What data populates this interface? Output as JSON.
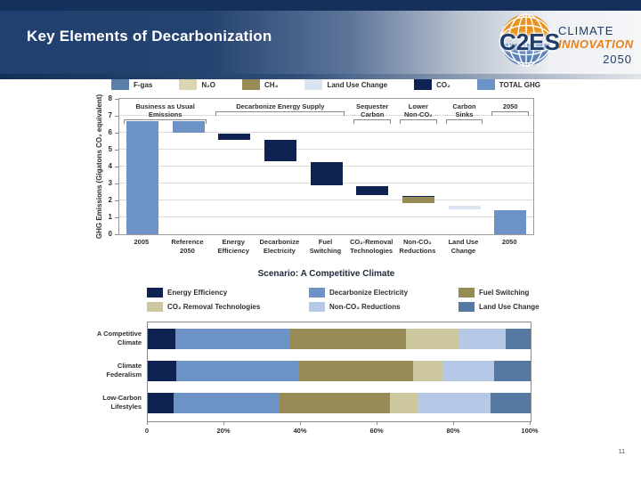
{
  "slide": {
    "title": "Key Elements of Decarbonization",
    "page_number": "11"
  },
  "logo": {
    "wordmark": "C2ES",
    "line1": "CLIMATE",
    "line2": "INNOVATION",
    "line3": "2050",
    "orange": "#e8931f",
    "blue": "#5b82b8",
    "navy": "#1d3c69"
  },
  "chart_data": [
    {
      "type": "bar",
      "subtype": "waterfall",
      "title": "",
      "ylabel": "GHG Emissions (Gigatons CO₂ equivalent)",
      "ylim": [
        0,
        8
      ],
      "yticks": [
        0,
        1,
        2,
        3,
        4,
        5,
        6,
        7,
        8
      ],
      "grid": true,
      "legend_position": "top",
      "palette": {
        "f_gas": "#5b7fa8",
        "n2o": "#dcd5b2",
        "ch4": "#978c55",
        "land_use": "#d9e3f1",
        "co2": "#0e2351",
        "total_ghg": "#6d92c6"
      },
      "legend": [
        {
          "label": "F-gas",
          "color_key": "f_gas"
        },
        {
          "label": "N₂O",
          "color_key": "n2o"
        },
        {
          "label": "CH₄",
          "color_key": "ch4"
        },
        {
          "label": "Land Use Change",
          "color_key": "land_use"
        },
        {
          "label": "CO₂",
          "color_key": "co2"
        },
        {
          "label": "TOTAL GHG",
          "color_key": "total_ghg"
        }
      ],
      "sections": [
        {
          "label": "Business as Usual Emissions",
          "span": [
            0,
            1
          ]
        },
        {
          "label": "Decarbonize Energy Supply",
          "span": [
            2,
            4
          ]
        },
        {
          "label": "Sequester\nCarbon",
          "span": [
            5,
            5
          ]
        },
        {
          "label": "Lower\nNon-CO₂",
          "span": [
            6,
            6
          ]
        },
        {
          "label": "Carbon Sinks",
          "span": [
            7,
            7
          ]
        },
        {
          "label": "2050",
          "span": [
            8,
            8
          ]
        }
      ],
      "categories": [
        "2005",
        "Reference\n2050",
        "Energy\nEfficiency",
        "Decarbonize\nElectricity",
        "Fuel\nSwitching",
        "CO₂-Removal\nTechnologies",
        "Non-CO₂\nReductions",
        "Land Use\nChange",
        "2050"
      ],
      "bars": [
        {
          "category": "2005",
          "segments": [
            {
              "from": 0,
              "to": 6.7,
              "color_key": "total_ghg"
            }
          ]
        },
        {
          "category": "Reference 2050",
          "segments": [
            {
              "from": 6.0,
              "to": 6.7,
              "color_key": "total_ghg"
            }
          ]
        },
        {
          "category": "Energy Efficiency",
          "segments": [
            {
              "from": 5.6,
              "to": 5.95,
              "color_key": "co2"
            }
          ]
        },
        {
          "category": "Decarbonize Electricity",
          "segments": [
            {
              "from": 4.3,
              "to": 5.6,
              "color_key": "co2"
            }
          ]
        },
        {
          "category": "Fuel Switching",
          "segments": [
            {
              "from": 2.9,
              "to": 4.25,
              "color_key": "co2"
            }
          ]
        },
        {
          "category": "CO₂-Removal Technologies",
          "segments": [
            {
              "from": 2.3,
              "to": 2.85,
              "color_key": "co2"
            }
          ]
        },
        {
          "category": "Non-CO₂ Reductions",
          "segments": [
            {
              "from": 1.85,
              "to": 2.2,
              "color_key": "ch4"
            },
            {
              "from": 2.2,
              "to": 2.28,
              "color_key": "co2"
            }
          ]
        },
        {
          "category": "Land Use Change",
          "segments": [
            {
              "from": 1.5,
              "to": 1.66,
              "color_key": "land_use"
            }
          ]
        },
        {
          "category": "2050",
          "segments": [
            {
              "from": 0,
              "to": 1.4,
              "color_key": "total_ghg"
            }
          ]
        }
      ]
    },
    {
      "type": "bar",
      "subtype": "stacked-horizontal",
      "title": "Scenario: A Competitive Climate",
      "xlim": [
        0,
        100
      ],
      "xticks": [
        "0",
        "20%",
        "40%",
        "60%",
        "80%",
        "100%"
      ],
      "legend_position": "top",
      "categories": [
        "A Competitive\nClimate",
        "Climate\nFederalism",
        "Low-Carbon\nLifestyles"
      ],
      "series": [
        {
          "name": "Energy Efficiency",
          "color": "#0e2351",
          "values": [
            7.3,
            7.4,
            6.8
          ]
        },
        {
          "name": "Decarbonize Electricity",
          "color": "#6d92c6",
          "values": [
            30.0,
            31.8,
            27.7
          ]
        },
        {
          "name": "Fuel Switching",
          "color": "#978c55",
          "values": [
            30.2,
            30.1,
            28.8
          ]
        },
        {
          "name": "CO₂ Removal Technologies",
          "color": "#cdc7a0",
          "values": [
            13.6,
            7.7,
            7.2
          ]
        },
        {
          "name": "Non-CO₂ Reductions",
          "color": "#b5c9e6",
          "values": [
            12.3,
            13.5,
            19.1
          ]
        },
        {
          "name": "Land Use Change",
          "color": "#5679a4",
          "values": [
            6.6,
            9.5,
            10.4
          ]
        }
      ]
    }
  ]
}
